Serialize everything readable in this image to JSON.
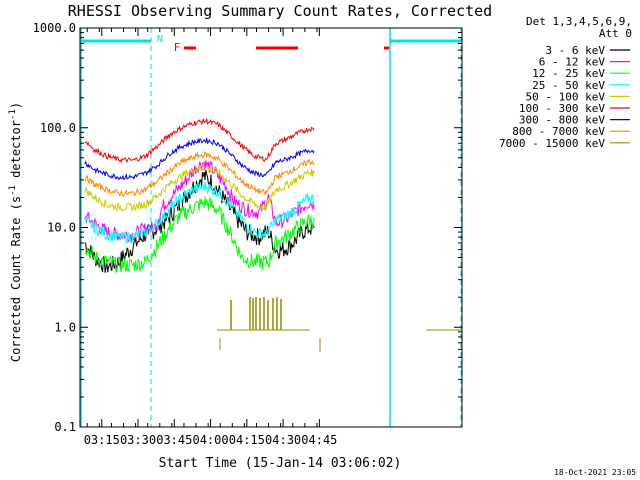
{
  "chart_data": {
    "type": "line",
    "title": "RHESSI Observing Summary Count Rates, Corrected",
    "xlabel": "Start Time (15-Jan-14 03:06:02)",
    "ylabel_pre": "Corrected Count Rate (s",
    "ylabel_sup1": "-1",
    "ylabel_mid": " detector",
    "ylabel_sup2": "-1",
    "ylabel_post": ")",
    "y_scale": "log",
    "ylim": [
      0.1,
      1000
    ],
    "xlim_min": [
      -54,
      104
    ],
    "ytick_labels": [
      "0.1",
      "1.0",
      "10.0",
      "100.0",
      "1000.0"
    ],
    "ytick_values": [
      0.1,
      1,
      10,
      100,
      1000
    ],
    "xtick_labels": [
      "03:15",
      "03:30",
      "03:45",
      "04:00",
      "04:15",
      "04:30",
      "04:45"
    ],
    "xtick_values": [
      -45,
      -30,
      -15,
      0,
      15,
      30,
      45
    ],
    "legend": {
      "placement": "top-right",
      "title_line1": "Det 1,3,4,5,6,9,",
      "title_line2": "Att 0"
    },
    "series": [
      {
        "name": "3 - 6 keV",
        "color": "#000000",
        "points": [
          [
            -52,
            7
          ],
          [
            -48,
            5
          ],
          [
            -43,
            4
          ],
          [
            -38,
            4.5
          ],
          [
            -32,
            6.5
          ],
          [
            -27,
            8.5
          ],
          [
            -23,
            9.5
          ],
          [
            -18,
            12
          ],
          [
            -13,
            17
          ],
          [
            -7,
            26
          ],
          [
            -3,
            33
          ],
          [
            1,
            28
          ],
          [
            5,
            20
          ],
          [
            10,
            13
          ],
          [
            15,
            9
          ],
          [
            20,
            8
          ],
          [
            23,
            9
          ],
          [
            24,
            9
          ],
          [
            27,
            6
          ],
          [
            30,
            6
          ],
          [
            34,
            7
          ],
          [
            38,
            9
          ],
          [
            41,
            10
          ],
          [
            43,
            9
          ]
        ]
      },
      {
        "name": "6 - 12 keV",
        "color": "#ff00ff",
        "points": [
          [
            -52,
            13
          ],
          [
            -48,
            11
          ],
          [
            -43,
            9
          ],
          [
            -38,
            8.5
          ],
          [
            -32,
            8.5
          ],
          [
            -28,
            9.5
          ],
          [
            -23,
            10
          ],
          [
            -20,
            16
          ],
          [
            -15,
            22
          ],
          [
            -10,
            30
          ],
          [
            -6,
            40
          ],
          [
            -3,
            45
          ],
          [
            1,
            38
          ],
          [
            6,
            27
          ],
          [
            10,
            18
          ],
          [
            15,
            15
          ],
          [
            20,
            14
          ],
          [
            24,
            20
          ],
          [
            27,
            11
          ],
          [
            31,
            12
          ],
          [
            36,
            15
          ],
          [
            41,
            18
          ],
          [
            43,
            17
          ]
        ]
      },
      {
        "name": "12 - 25 keV",
        "color": "#00ff00",
        "points": [
          [
            -52,
            6.5
          ],
          [
            -48,
            5
          ],
          [
            -43,
            4.5
          ],
          [
            -38,
            4.2
          ],
          [
            -32,
            4.2
          ],
          [
            -27,
            4.5
          ],
          [
            -23,
            6
          ],
          [
            -18,
            9
          ],
          [
            -13,
            13
          ],
          [
            -7,
            16
          ],
          [
            -2,
            18
          ],
          [
            3,
            15
          ],
          [
            8,
            9
          ],
          [
            13,
            5
          ],
          [
            18,
            4.5
          ],
          [
            24,
            4.5
          ],
          [
            27,
            7
          ],
          [
            31,
            8
          ],
          [
            36,
            10
          ],
          [
            41,
            12
          ],
          [
            43,
            11
          ]
        ]
      },
      {
        "name": "25 - 50 keV",
        "color": "#00ffff",
        "points": [
          [
            -52,
            12
          ],
          [
            -48,
            10
          ],
          [
            -43,
            8.5
          ],
          [
            -38,
            8
          ],
          [
            -32,
            8
          ],
          [
            -27,
            9
          ],
          [
            -22,
            11
          ],
          [
            -17,
            15
          ],
          [
            -12,
            20
          ],
          [
            -7,
            24
          ],
          [
            -2,
            26
          ],
          [
            3,
            23
          ],
          [
            8,
            17
          ],
          [
            13,
            12
          ],
          [
            18,
            9
          ],
          [
            23,
            8.5
          ],
          [
            27,
            12
          ],
          [
            31,
            13
          ],
          [
            36,
            16
          ],
          [
            41,
            20
          ],
          [
            43,
            19
          ]
        ]
      },
      {
        "name": "50 - 100 keV",
        "color": "#cccc00",
        "points": [
          [
            -52,
            24
          ],
          [
            -48,
            20
          ],
          [
            -43,
            17
          ],
          [
            -38,
            16
          ],
          [
            -32,
            16
          ],
          [
            -27,
            17
          ],
          [
            -22,
            21
          ],
          [
            -17,
            27
          ],
          [
            -12,
            33
          ],
          [
            -7,
            38
          ],
          [
            -2,
            40
          ],
          [
            3,
            36
          ],
          [
            8,
            28
          ],
          [
            13,
            21
          ],
          [
            18,
            17
          ],
          [
            23,
            16
          ],
          [
            27,
            24
          ],
          [
            31,
            26
          ],
          [
            36,
            31
          ],
          [
            41,
            36
          ],
          [
            43,
            35
          ]
        ]
      },
      {
        "name": "100 - 300 keV",
        "color": "#ff0000",
        "points": [
          [
            -52,
            75
          ],
          [
            -48,
            60
          ],
          [
            -43,
            52
          ],
          [
            -38,
            48
          ],
          [
            -32,
            47
          ],
          [
            -27,
            52
          ],
          [
            -22,
            65
          ],
          [
            -17,
            85
          ],
          [
            -12,
            100
          ],
          [
            -7,
            112
          ],
          [
            -2,
            117
          ],
          [
            3,
            108
          ],
          [
            8,
            85
          ],
          [
            13,
            65
          ],
          [
            18,
            52
          ],
          [
            23,
            48
          ],
          [
            27,
            70
          ],
          [
            31,
            76
          ],
          [
            36,
            88
          ],
          [
            41,
            98
          ],
          [
            43,
            96
          ]
        ]
      },
      {
        "name": "300 - 800 keV",
        "color": "#0000ff",
        "points": [
          [
            -52,
            45
          ],
          [
            -48,
            38
          ],
          [
            -43,
            34
          ],
          [
            -38,
            32
          ],
          [
            -32,
            32
          ],
          [
            -27,
            35
          ],
          [
            -22,
            42
          ],
          [
            -17,
            55
          ],
          [
            -12,
            65
          ],
          [
            -7,
            72
          ],
          [
            -2,
            75
          ],
          [
            3,
            70
          ],
          [
            8,
            55
          ],
          [
            13,
            42
          ],
          [
            18,
            35
          ],
          [
            23,
            33
          ],
          [
            27,
            45
          ],
          [
            31,
            48
          ],
          [
            36,
            54
          ],
          [
            41,
            60
          ],
          [
            43,
            58
          ]
        ]
      },
      {
        "name": "800 - 7000 keV",
        "color": "#ff8800",
        "points": [
          [
            -52,
            32
          ],
          [
            -48,
            27
          ],
          [
            -43,
            24
          ],
          [
            -38,
            22
          ],
          [
            -32,
            22
          ],
          [
            -27,
            24
          ],
          [
            -22,
            29
          ],
          [
            -17,
            37
          ],
          [
            -12,
            45
          ],
          [
            -7,
            51
          ],
          [
            -2,
            54
          ],
          [
            3,
            49
          ],
          [
            8,
            38
          ],
          [
            13,
            29
          ],
          [
            18,
            24
          ],
          [
            23,
            22
          ],
          [
            27,
            32
          ],
          [
            31,
            35
          ],
          [
            36,
            40
          ],
          [
            41,
            46
          ],
          [
            43,
            45
          ]
        ]
      },
      {
        "name": "7000 - 15000 keV",
        "color": "#998800",
        "points": []
      }
    ]
  },
  "annotations": {
    "footer_timestamp": "18-Oct-2021 23:05",
    "night_marker": "N",
    "flare_marker": "F"
  }
}
